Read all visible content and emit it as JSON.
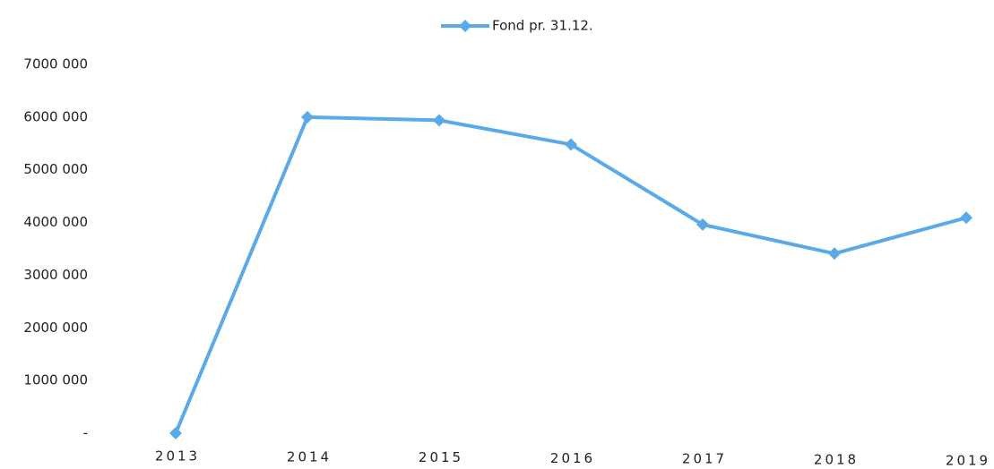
{
  "chart_data": {
    "type": "line",
    "categories": [
      "2013",
      "2014",
      "2015",
      "2016",
      "2017",
      "2018",
      "2019"
    ],
    "series": [
      {
        "name": "Fond pr. 31.12.",
        "color": "#5aaae8",
        "values": [
          0,
          6000000,
          5940000,
          5480000,
          3960000,
          3410000,
          4090000
        ]
      }
    ],
    "ylim": [
      0,
      7000000
    ],
    "yticks": [
      {
        "value": 0,
        "label": "-"
      },
      {
        "value": 1000000,
        "label": "1000 000"
      },
      {
        "value": 2000000,
        "label": "2000 000"
      },
      {
        "value": 3000000,
        "label": "3000 000"
      },
      {
        "value": 4000000,
        "label": "4000 000"
      },
      {
        "value": 5000000,
        "label": "5000 000"
      },
      {
        "value": 6000000,
        "label": "6000 000"
      },
      {
        "value": 7000000,
        "label": "7000 000"
      }
    ],
    "grid": false,
    "legend": "top"
  }
}
